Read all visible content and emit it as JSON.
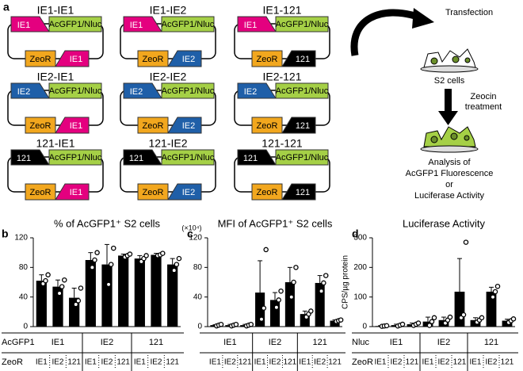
{
  "diagram": {
    "panel_label": "a",
    "promoter_colors": {
      "IE1": "#e4007f",
      "IE2": "#1f5fa8",
      "121": "#000000"
    },
    "reporter_color": "#a5d046",
    "marker_color": "#f2a71e",
    "constructs": [
      {
        "title": "IE1-IE1",
        "promoter1": "IE1",
        "reporter": "AcGFP1/Nluc",
        "marker": "ZeoR",
        "promoter2": "IE1"
      },
      {
        "title": "IE1-IE2",
        "promoter1": "IE1",
        "reporter": "AcGFP1/Nluc",
        "marker": "ZeoR",
        "promoter2": "IE2"
      },
      {
        "title": "IE1-121",
        "promoter1": "IE1",
        "reporter": "AcGFP1/Nluc",
        "marker": "ZeoR",
        "promoter2": "121"
      },
      {
        "title": "IE2-IE1",
        "promoter1": "IE2",
        "reporter": "AcGFP1/Nluc",
        "marker": "ZeoR",
        "promoter2": "IE1"
      },
      {
        "title": "IE2-IE2",
        "promoter1": "IE2",
        "reporter": "AcGFP1/Nluc",
        "marker": "ZeoR",
        "promoter2": "IE2"
      },
      {
        "title": "IE2-121",
        "promoter1": "IE2",
        "reporter": "AcGFP1/Nluc",
        "marker": "ZeoR",
        "promoter2": "121"
      },
      {
        "title": "121-IE1",
        "promoter1": "121",
        "reporter": "AcGFP1/Nluc",
        "marker": "ZeoR",
        "promoter2": "IE1"
      },
      {
        "title": "121-IE2",
        "promoter1": "121",
        "reporter": "AcGFP1/Nluc",
        "marker": "ZeoR",
        "promoter2": "IE2"
      },
      {
        "title": "121-121",
        "promoter1": "121",
        "reporter": "AcGFP1/Nluc",
        "marker": "ZeoR",
        "promoter2": "121"
      }
    ],
    "workflow": {
      "step1": "Transfection",
      "cells": "S2 cells",
      "step2": [
        "Zeocin",
        "treatment"
      ],
      "analysis": [
        "Analysis of",
        "AcGFP1 Fluorescence",
        "or",
        "Luciferase Activity"
      ]
    }
  },
  "chart_data": [
    {
      "type": "bar",
      "panel_label": "b",
      "title": "% of AcGFP1⁺ S2 cells",
      "color": "#000000",
      "row_label": "AcGFP1",
      "sub_row_label": "ZeoR",
      "groups": [
        "IE1",
        "IE2",
        "121"
      ],
      "categories": [
        "IE1",
        "IE2",
        "121",
        "IE1",
        "IE2",
        "121",
        "IE1",
        "IE2",
        "121"
      ],
      "values": [
        62,
        54,
        39,
        90,
        84,
        96,
        92,
        97,
        84
      ],
      "errors": [
        8,
        9,
        13,
        10,
        27,
        2,
        4,
        2,
        8
      ],
      "points": [
        [
          58,
          62,
          70
        ],
        [
          45,
          54,
          63
        ],
        [
          30,
          35,
          52
        ],
        [
          80,
          90,
          100
        ],
        [
          57,
          84,
          106
        ],
        [
          94,
          96,
          98
        ],
        [
          88,
          92,
          96
        ],
        [
          96,
          97,
          99
        ],
        [
          76,
          84,
          92
        ]
      ],
      "ylim": [
        0,
        120
      ],
      "yticks": [
        0,
        40,
        80,
        120
      ]
    },
    {
      "type": "bar",
      "panel_label": "c",
      "title": "MFI of AcGFP1⁺ S2 cells",
      "y_unit": "(×10⁴)",
      "color": "#000000",
      "groups": [
        "IE1",
        "IE2",
        "121"
      ],
      "categories": [
        "IE1",
        "IE2",
        "121",
        "IE1",
        "IE2",
        "121",
        "IE1",
        "IE2",
        "121"
      ],
      "values": [
        2,
        2,
        2,
        46,
        36,
        60,
        17,
        59,
        8
      ],
      "errors": [
        0.5,
        1,
        1,
        43,
        10,
        20,
        4,
        10,
        1
      ],
      "points": [
        [
          1,
          2,
          3
        ],
        [
          1,
          2,
          3
        ],
        [
          1,
          2,
          3
        ],
        [
          10,
          25,
          104
        ],
        [
          26,
          36,
          48
        ],
        [
          40,
          60,
          80
        ],
        [
          13,
          17,
          21
        ],
        [
          48,
          59,
          69
        ],
        [
          7,
          8,
          9
        ]
      ],
      "ylim": [
        0,
        120
      ],
      "yticks": [
        0,
        40,
        80,
        120
      ]
    },
    {
      "type": "bar",
      "panel_label": "d",
      "title": "Luciferase Activity",
      "ylabel": "CPS/µg protein",
      "color": "#000000",
      "row_label": "Nluc",
      "sub_row_label": "ZeoR",
      "groups": [
        "IE1",
        "IE2",
        "121"
      ],
      "categories": [
        "IE1",
        "IE2",
        "121",
        "IE1",
        "IE2",
        "121",
        "IE1",
        "IE2",
        "121"
      ],
      "values": [
        2,
        5,
        8,
        17,
        22,
        118,
        22,
        118,
        20
      ],
      "errors": [
        1,
        3,
        4,
        15,
        10,
        112,
        8,
        15,
        5
      ],
      "points": [
        [
          1,
          2,
          3
        ],
        [
          2,
          5,
          8
        ],
        [
          4,
          8,
          12
        ],
        [
          4,
          17,
          30
        ],
        [
          12,
          22,
          32
        ],
        [
          30,
          40,
          285
        ],
        [
          15,
          22,
          30
        ],
        [
          100,
          118,
          136
        ],
        [
          14,
          20,
          26
        ]
      ],
      "ylim": [
        0,
        300
      ],
      "yticks": [
        0,
        100,
        200,
        300
      ]
    }
  ]
}
